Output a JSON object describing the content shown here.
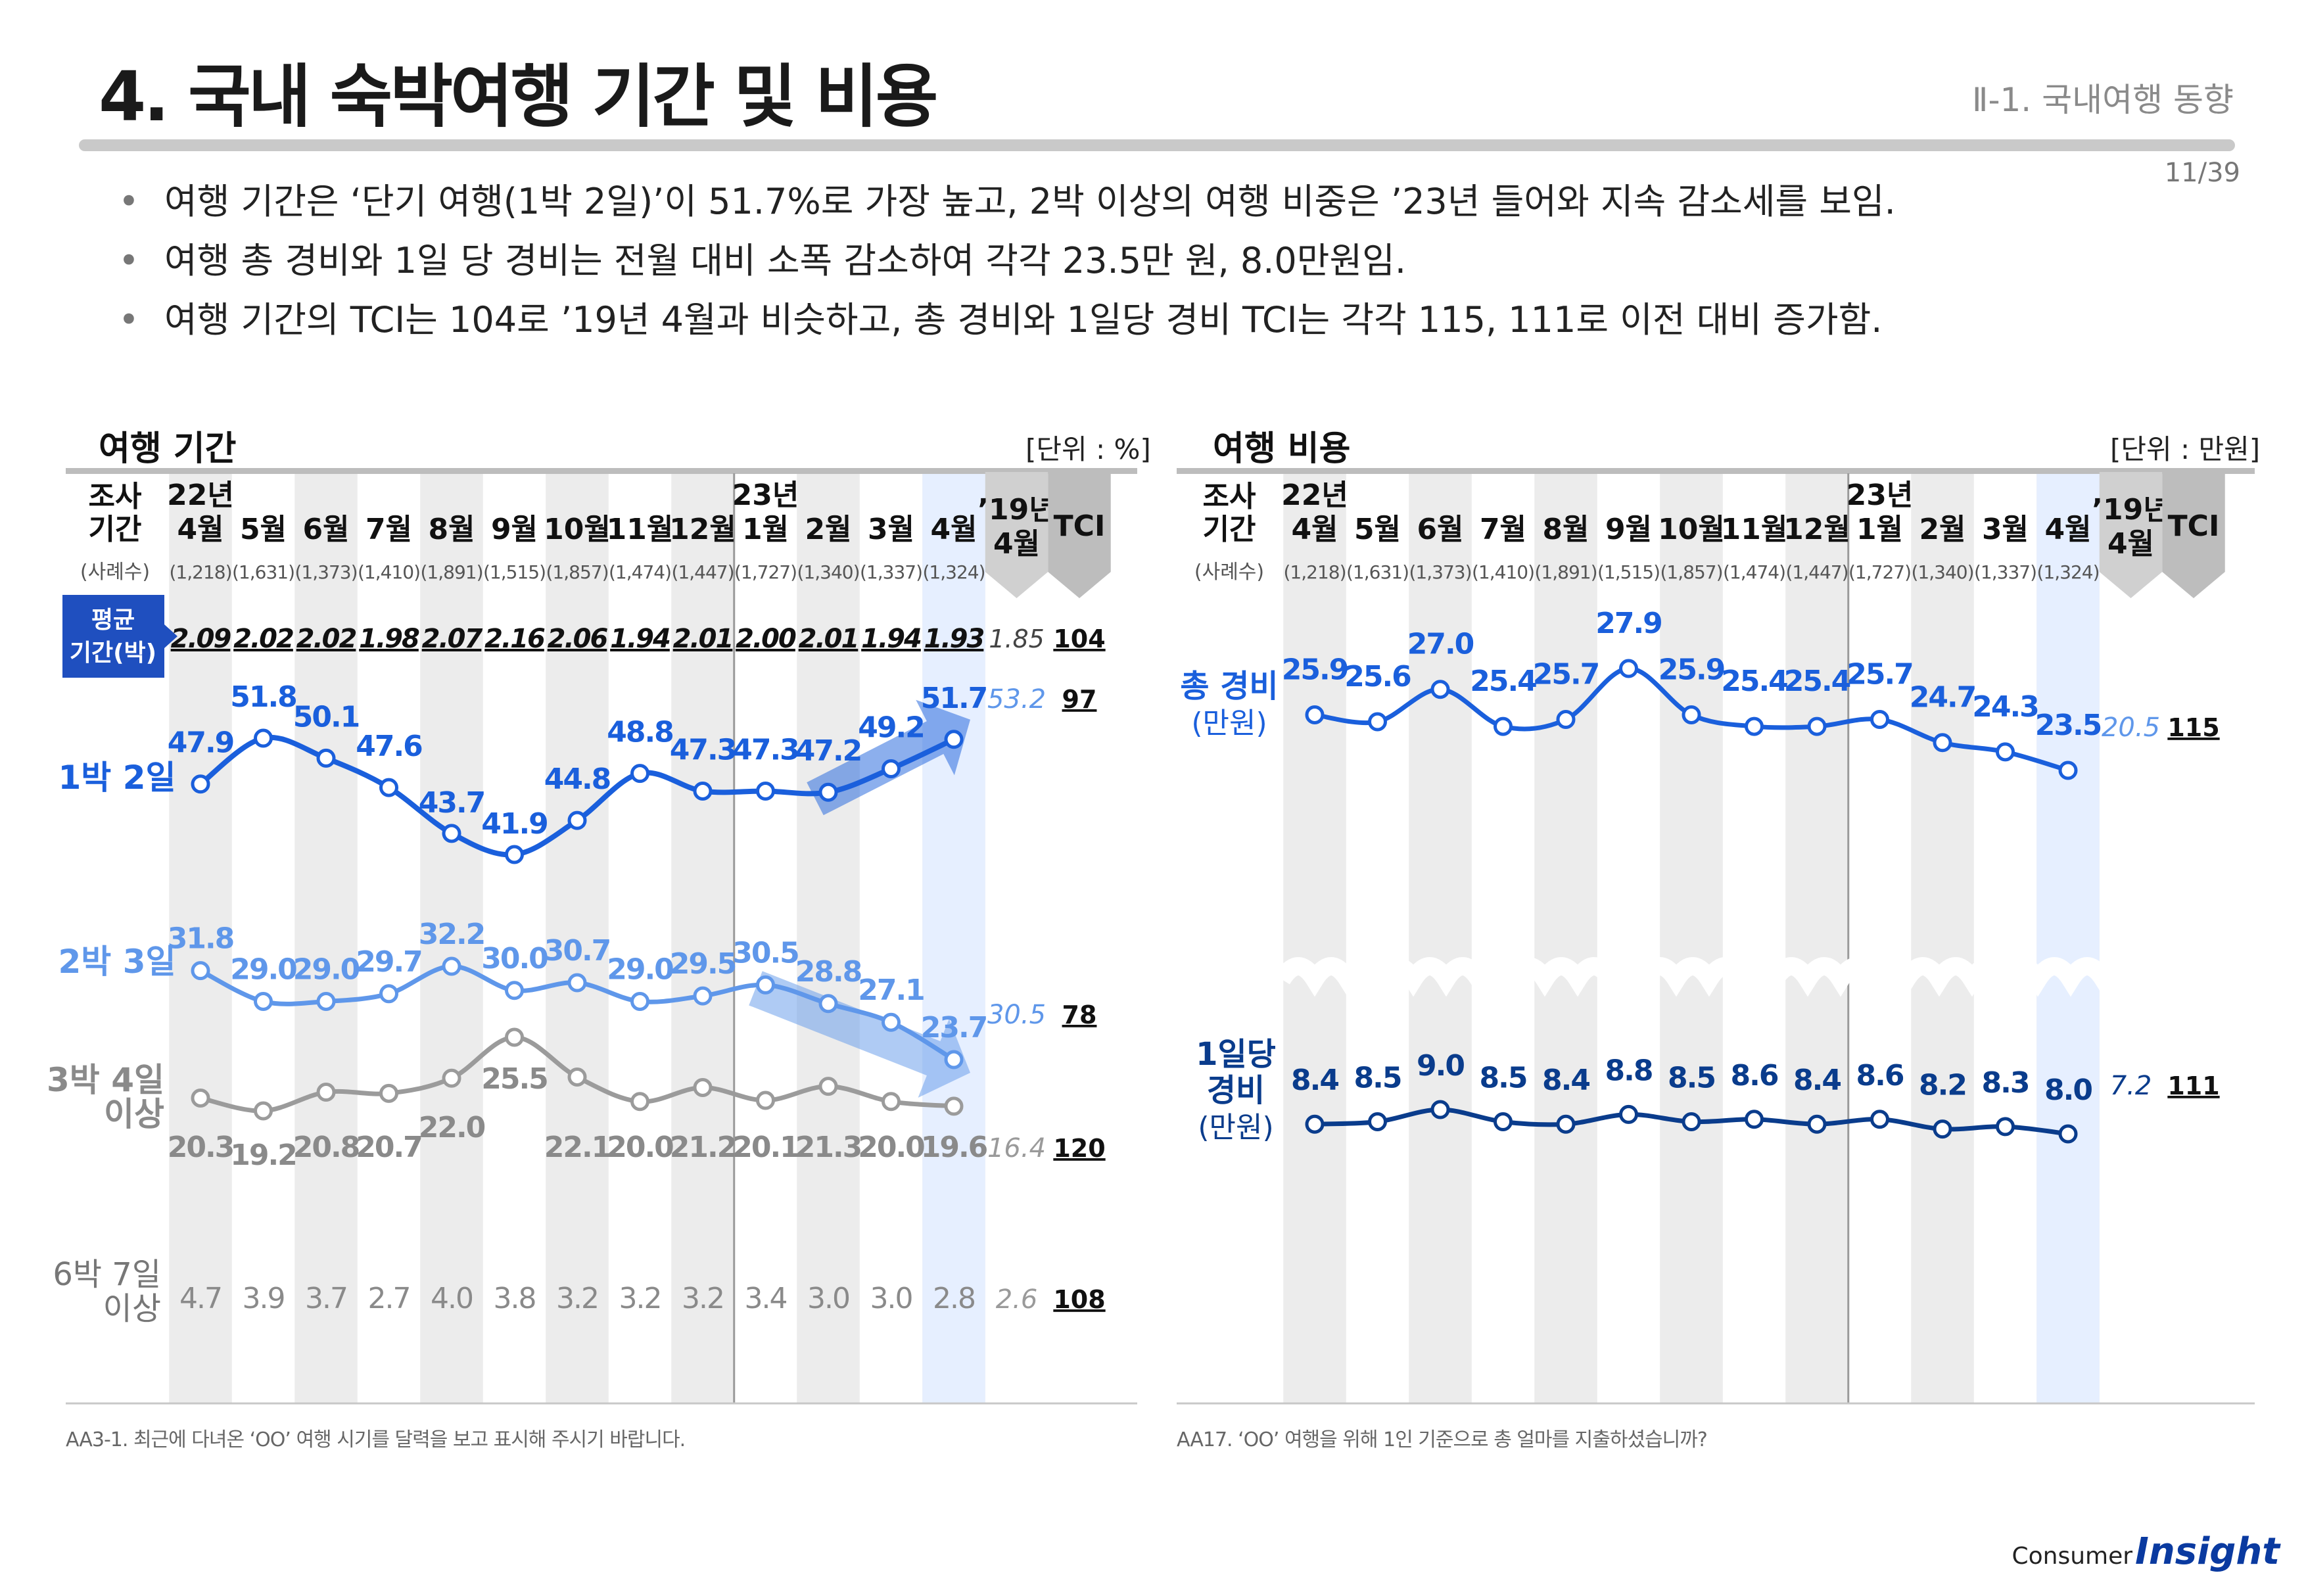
{
  "header": {
    "title": "4. 국내 숙박여행 기간 및 비용",
    "section": "Ⅱ-1. 국내여행 동향",
    "page": "11/39"
  },
  "bullets": [
    "여행 기간은 ‘단기 여행(1박 2일)’이 51.7%로 가장 높고, 2박 이상의 여행 비중은 ’23년 들어와 지속 감소세를 보임.",
    "여행 총 경비와 1일 당 경비는 전월 대비 소폭 감소하여 각각 23.5만 원, 8.0만원임.",
    "여행 기간의 TCI는 104로 ’19년 4월과 비슷하고, 총 경비와 1일당 경비 TCI는 각각 115, 111로 이전 대비 증가함."
  ],
  "footer": {
    "left": "AA3-1. 최근에 다녀온 ‘OO’ 여행 시기를 달력을 보고 표시해 주시기 바랍니다.",
    "right": "AA17. ‘OO’ 여행을 위해 1인 기준으로 총 얼마를 지출하셨습니까?"
  },
  "logo": {
    "prefix": "Consumer",
    "name": "Insight"
  },
  "colors": {
    "dark_blue": "#0a3c8c",
    "blue": "#1a5fdc",
    "light_blue": "#5f97ea",
    "gray": "#9b9b9b",
    "highlight": "#e6efff",
    "stripe": "#ececec"
  },
  "chart_data": [
    {
      "type": "line",
      "title": "여행 기간",
      "unit": "[단위 : %]",
      "header": {
        "survey": [
          "조사",
          "기간"
        ],
        "year1": "22년",
        "year2": "23년",
        "compare": [
          "’19년",
          "4월"
        ],
        "tci": "TCI",
        "sample_label": "(사례수)"
      },
      "categories": [
        "4월",
        "5월",
        "6월",
        "7월",
        "8월",
        "9월",
        "10월",
        "11월",
        "12월",
        "1월",
        "2월",
        "3월",
        "4월"
      ],
      "sample_sizes": [
        "(1,218)",
        "(1,631)",
        "(1,373)",
        "(1,410)",
        "(1,891)",
        "(1,515)",
        "(1,857)",
        "(1,474)",
        "(1,447)",
        "(1,727)",
        "(1,340)",
        "(1,337)",
        "(1,324)"
      ],
      "average": {
        "label": [
          "평균",
          "기간(박)"
        ],
        "values": [
          "2.09",
          "2.02",
          "2.02",
          "1.98",
          "2.07",
          "2.16",
          "2.06",
          "1.94",
          "2.01",
          "2.00",
          "2.01",
          "1.94",
          "1.93"
        ],
        "compare": "1.85",
        "tci": "104"
      },
      "series": [
        {
          "name": "1박 2일",
          "values": [
            47.9,
            51.8,
            50.1,
            47.6,
            43.7,
            41.9,
            44.8,
            48.8,
            47.3,
            47.3,
            47.2,
            49.2,
            51.7
          ],
          "compare": "53.2",
          "tci": "97"
        },
        {
          "name": "2박 3일",
          "values": [
            31.8,
            29.0,
            29.0,
            29.7,
            32.2,
            30.0,
            30.7,
            29.0,
            29.5,
            30.5,
            28.8,
            27.1,
            23.7
          ],
          "compare": "30.5",
          "tci": "78"
        },
        {
          "name": "3박 4일 이상",
          "label_lines": [
            "3박 4일",
            "이상"
          ],
          "values": [
            20.3,
            19.2,
            20.8,
            20.7,
            22.0,
            25.5,
            22.1,
            20.0,
            21.2,
            20.1,
            21.3,
            20.0,
            19.6
          ],
          "compare": "16.4",
          "tci": "120"
        },
        {
          "name": "6박 7일 이상",
          "label_lines": [
            "6박 7일",
            "이상"
          ],
          "values": [
            "4.7",
            "3.9",
            "3.7",
            "2.7",
            "4.0",
            "3.8",
            "3.2",
            "3.2",
            "3.2",
            "3.4",
            "3.0",
            "3.0",
            "2.8"
          ],
          "compare": "2.6",
          "tci": "108"
        }
      ]
    },
    {
      "type": "line",
      "title": "여행 비용",
      "unit": "[단위 : 만원]",
      "header": {
        "survey": [
          "조사",
          "기간"
        ],
        "year1": "22년",
        "year2": "23년",
        "compare": [
          "’19년",
          "4월"
        ],
        "tci": "TCI",
        "sample_label": "(사례수)"
      },
      "categories": [
        "4월",
        "5월",
        "6월",
        "7월",
        "8월",
        "9월",
        "10월",
        "11월",
        "12월",
        "1월",
        "2월",
        "3월",
        "4월"
      ],
      "sample_sizes": [
        "(1,218)",
        "(1,631)",
        "(1,373)",
        "(1,410)",
        "(1,891)",
        "(1,515)",
        "(1,857)",
        "(1,474)",
        "(1,447)",
        "(1,727)",
        "(1,340)",
        "(1,337)",
        "(1,324)"
      ],
      "series": [
        {
          "name": "총 경비(만원)",
          "label_lines": [
            "총 경비",
            "(만원)"
          ],
          "values": [
            25.9,
            25.6,
            27.0,
            25.4,
            25.7,
            27.9,
            25.9,
            25.4,
            25.4,
            25.7,
            24.7,
            24.3,
            23.5
          ],
          "compare": "20.5",
          "tci": "115"
        },
        {
          "name": "1일당 경비(만원)",
          "label_lines": [
            "1일당",
            "경비",
            "(만원)"
          ],
          "values": [
            8.4,
            8.5,
            9.0,
            8.5,
            8.4,
            8.8,
            8.5,
            8.6,
            8.4,
            8.6,
            8.2,
            8.3,
            8.0
          ],
          "compare": "7.2",
          "tci": "111"
        }
      ]
    }
  ]
}
